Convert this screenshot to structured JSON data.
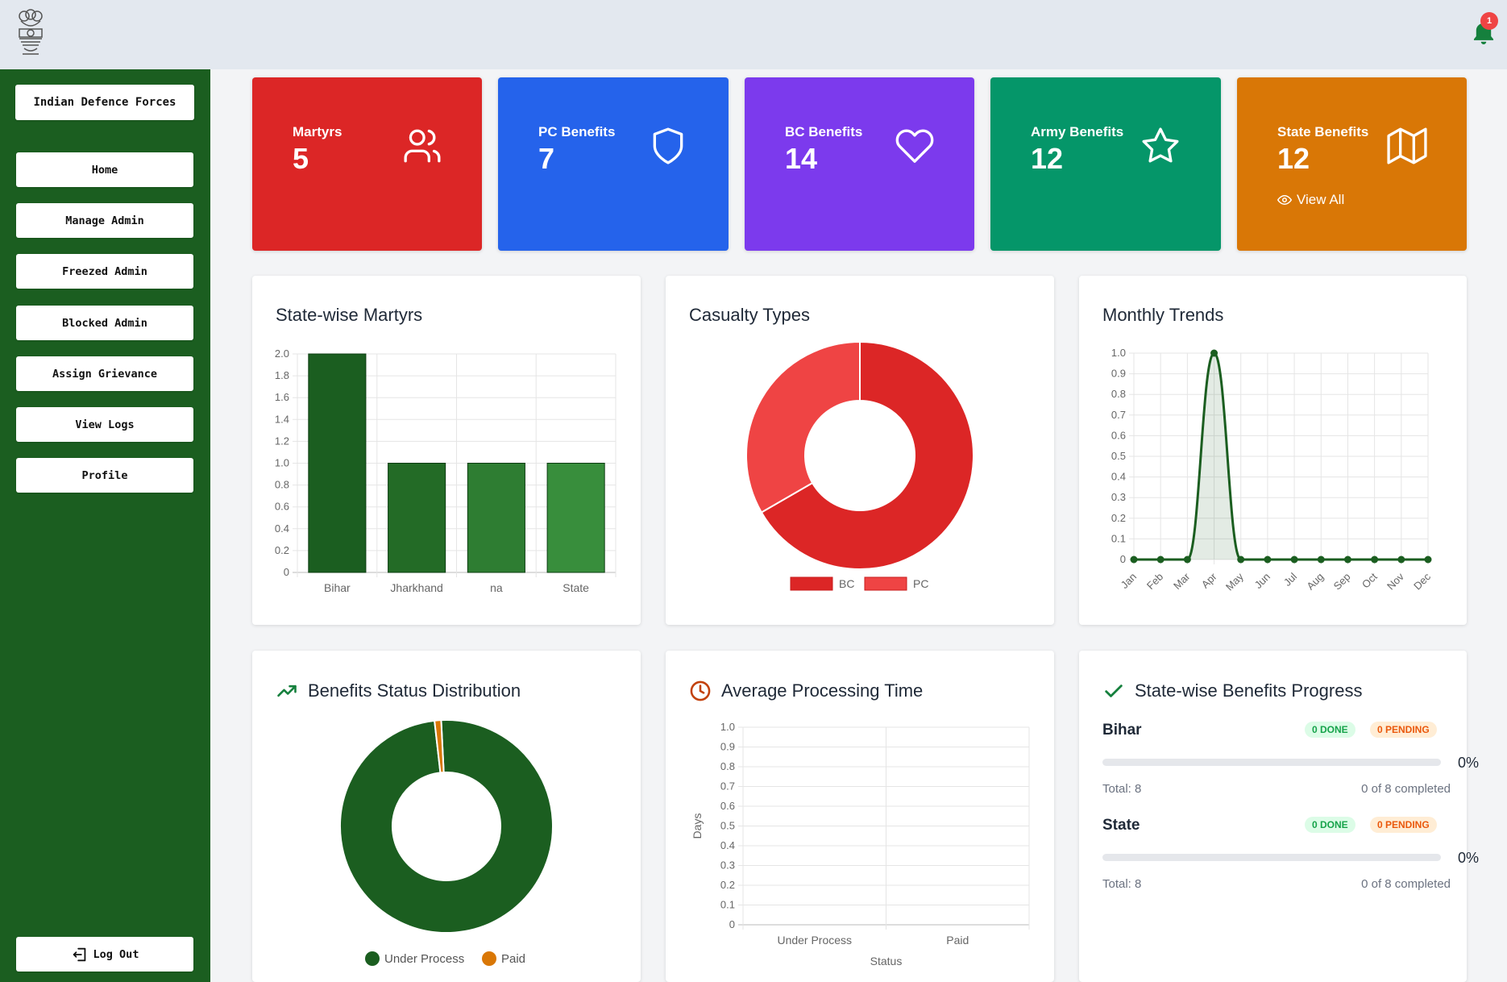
{
  "header": {
    "notification_count": "1"
  },
  "sidebar": {
    "brand": "Indian Defence Forces",
    "items": [
      {
        "label": "Home"
      },
      {
        "label": "Manage Admin"
      },
      {
        "label": "Freezed Admin"
      },
      {
        "label": "Blocked Admin"
      },
      {
        "label": "Assign Grievance"
      },
      {
        "label": "View Logs"
      },
      {
        "label": "Profile"
      }
    ],
    "logout": "Log Out"
  },
  "stats": [
    {
      "label": "Martyrs",
      "value": "5",
      "color": "#dc2626",
      "icon": "users-icon"
    },
    {
      "label": "PC Benefits",
      "value": "7",
      "color": "#2563eb",
      "icon": "shield-icon"
    },
    {
      "label": "BC Benefits",
      "value": "14",
      "color": "#7c3aed",
      "icon": "heart-icon"
    },
    {
      "label": "Army Benefits",
      "value": "12",
      "color": "#059669",
      "icon": "star-icon"
    },
    {
      "label": "State Benefits",
      "value": "12",
      "color": "#d97706",
      "icon": "map-icon",
      "link": "View All"
    }
  ],
  "panels": {
    "state_martyrs": "State-wise Martyrs",
    "casualty": "Casualty Types",
    "monthly": "Monthly Trends",
    "status_dist": "Benefits Status Distribution",
    "processing": "Average Processing Time",
    "progress": "State-wise Benefits Progress"
  },
  "chart_data": [
    {
      "type": "bar",
      "title": "State-wise Martyrs",
      "categories": [
        "Bihar",
        "Jharkhand",
        "na",
        "State"
      ],
      "values": [
        2,
        1,
        1,
        1
      ],
      "ylim": [
        0,
        2
      ],
      "yticks": [
        "0",
        "0.2",
        "0.4",
        "0.6",
        "0.8",
        "1.0",
        "1.2",
        "1.4",
        "1.6",
        "1.8",
        "2.0"
      ],
      "colors": [
        "#1b5e20",
        "#236b26",
        "#2e7d32",
        "#388e3c"
      ],
      "grid": true
    },
    {
      "type": "pie",
      "title": "Casualty Types",
      "labels": [
        "BC",
        "PC"
      ],
      "values": [
        14,
        7
      ],
      "colors": [
        "#dc2626",
        "#ef4444"
      ],
      "legend": "bottom"
    },
    {
      "type": "line",
      "title": "Monthly Trends",
      "x": [
        "Jan",
        "Feb",
        "Mar",
        "Apr",
        "May",
        "Jun",
        "Jul",
        "Aug",
        "Sep",
        "Oct",
        "Nov",
        "Dec"
      ],
      "values": [
        0,
        0,
        0,
        1,
        0,
        0,
        0,
        0,
        0,
        0,
        0,
        0
      ],
      "ylim": [
        0,
        1
      ],
      "yticks": [
        "0",
        "0.1",
        "0.2",
        "0.3",
        "0.4",
        "0.5",
        "0.6",
        "0.7",
        "0.8",
        "0.9",
        "1.0"
      ],
      "color": "#1b5e20",
      "grid": true
    },
    {
      "type": "pie",
      "title": "Benefits Status Distribution",
      "labels": [
        "Under Process",
        "Paid"
      ],
      "values": [
        99,
        1
      ],
      "colors": [
        "#1b5e20",
        "#d97706"
      ],
      "legend": "bottom"
    },
    {
      "type": "bar",
      "title": "Average Processing Time",
      "categories": [
        "Under Process",
        "Paid"
      ],
      "values": [
        0,
        0
      ],
      "ylim": [
        0,
        1
      ],
      "yticks": [
        "0",
        "0.1",
        "0.2",
        "0.3",
        "0.4",
        "0.5",
        "0.6",
        "0.7",
        "0.8",
        "0.9",
        "1.0"
      ],
      "xlabel": "Status",
      "ylabel": "Days",
      "grid": true
    }
  ],
  "progress": [
    {
      "name": "Bihar",
      "done": "0 DONE",
      "pending": "0 PENDING",
      "pct": "0%",
      "fraction": 0,
      "total": "Total: 8",
      "completed": "0 of 8 completed"
    },
    {
      "name": "State",
      "done": "0 DONE",
      "pending": "0 PENDING",
      "pct": "0%",
      "fraction": 0,
      "total": "Total: 8",
      "completed": "0 of 8 completed"
    }
  ]
}
